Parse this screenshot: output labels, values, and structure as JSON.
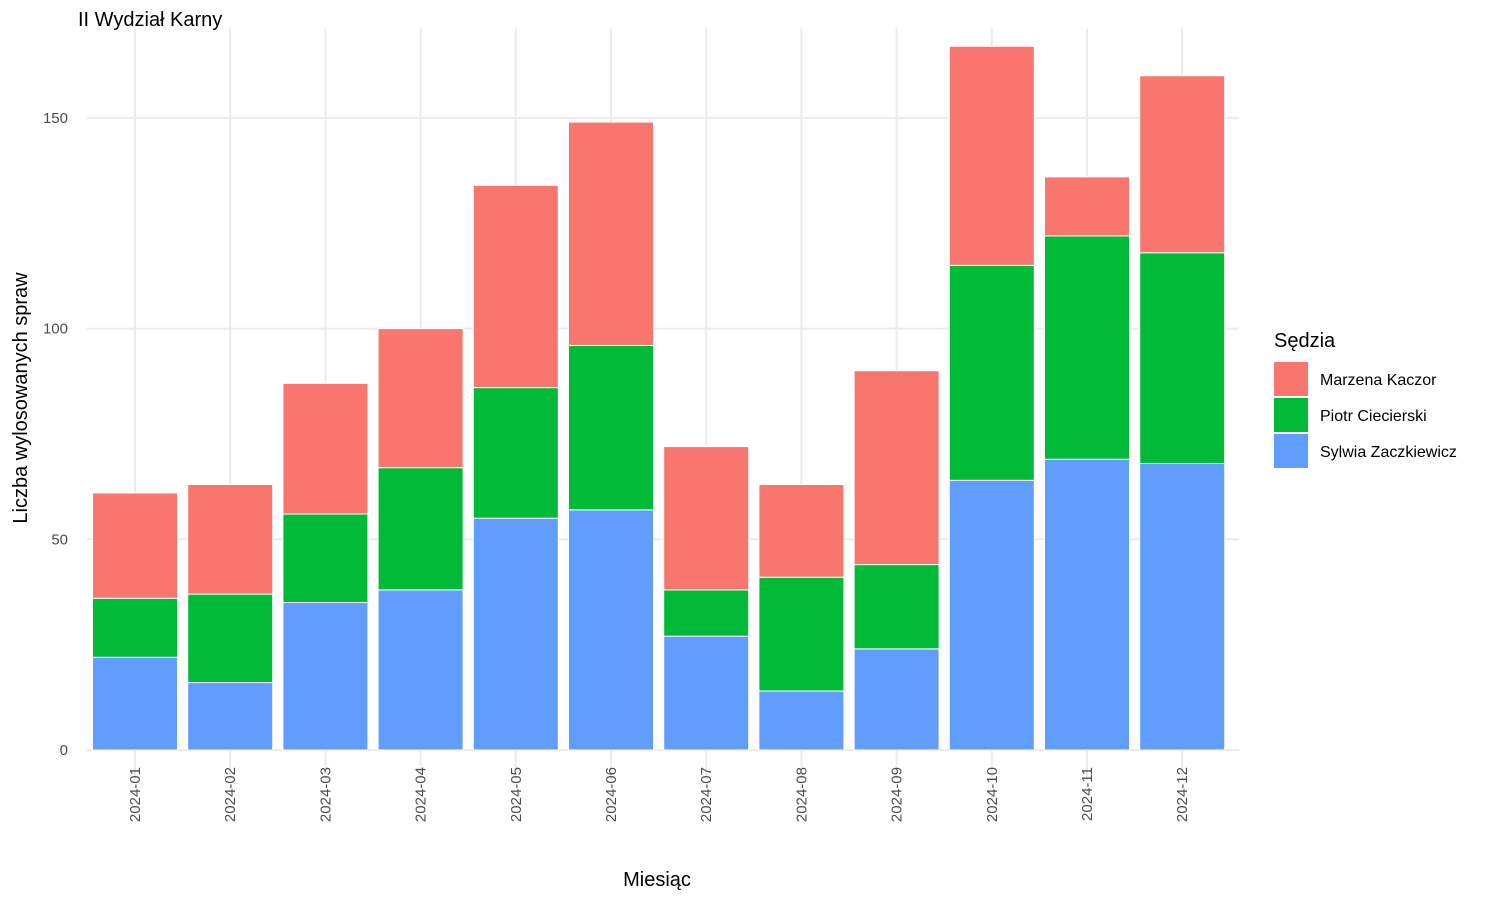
{
  "chart_data": {
    "type": "bar",
    "stacked": true,
    "title": "II Wydział Karny",
    "xlabel": "Miesiąc",
    "ylabel": "Liczba wylosowanych spraw",
    "ylim": [
      0,
      170
    ],
    "yticks": [
      0,
      50,
      100,
      150
    ],
    "grid": true,
    "legend": {
      "title": "Sędzia",
      "position": "right"
    },
    "categories": [
      "2024-01",
      "2024-02",
      "2024-03",
      "2024-04",
      "2024-05",
      "2024-06",
      "2024-07",
      "2024-08",
      "2024-09",
      "2024-10",
      "2024-11",
      "2024-12"
    ],
    "series": [
      {
        "name": "Sylwia Zaczkiewicz",
        "color": "#619CFF",
        "values": [
          22,
          16,
          35,
          38,
          55,
          57,
          27,
          14,
          24,
          64,
          69,
          68
        ]
      },
      {
        "name": "Piotr Ciecierski",
        "color": "#00BA38",
        "values": [
          14,
          21,
          21,
          29,
          31,
          39,
          11,
          27,
          20,
          51,
          53,
          50
        ]
      },
      {
        "name": "Marzena Kaczor",
        "color": "#F8766D",
        "values": [
          25,
          26,
          31,
          33,
          48,
          53,
          34,
          22,
          46,
          52,
          14,
          42
        ]
      }
    ],
    "legend_order": [
      "Marzena Kaczor",
      "Piotr Ciecierski",
      "Sylwia Zaczkiewicz"
    ]
  }
}
